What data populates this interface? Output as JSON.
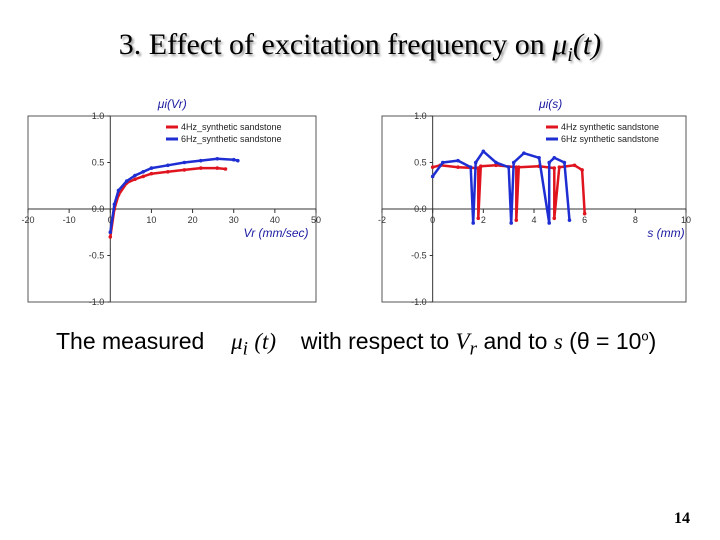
{
  "slide": {
    "title_main": "3. Effect of excitation frequency on ",
    "title_mu": "μ",
    "title_sub": "i",
    "title_tail": "(t)",
    "caption": {
      "part1": "The measured",
      "mu": "μ",
      "sub_i": "i",
      "paren_t": "(t)",
      "part2": "with respect to",
      "Vr": "V",
      "Vr_sub": "r",
      "part3": "and to",
      "s": "s",
      "theta_eq": "(θ = 10",
      "deg": "o",
      "close": ")"
    },
    "page_number": "14"
  },
  "chart_data": [
    {
      "type": "line",
      "title": "μi(Vr)",
      "xlabel": "Vr (mm/sec)",
      "ylabel": "",
      "xlim": [
        -20,
        50
      ],
      "ylim": [
        -1.0,
        1.0
      ],
      "xticks": [
        "-20",
        "-10",
        "0",
        "10",
        "20",
        "30",
        "40",
        "50"
      ],
      "yticks": [
        "1.0",
        "0.5",
        "0.0",
        "-0.5",
        "-1.0"
      ],
      "grid": false,
      "legend_position": "top-right",
      "series": [
        {
          "name": "4Hz_synthetic sandstone",
          "color": "#e0141e",
          "x": [
            0,
            1,
            2,
            4,
            6,
            8,
            10,
            14,
            18,
            22,
            26,
            28
          ],
          "y": [
            -0.3,
            0.0,
            0.15,
            0.28,
            0.32,
            0.35,
            0.38,
            0.4,
            0.42,
            0.44,
            0.44,
            0.43
          ]
        },
        {
          "name": "6Hz_synthetic sandstone",
          "color": "#1e2ed2",
          "x": [
            0,
            1,
            2,
            4,
            6,
            8,
            10,
            14,
            18,
            22,
            26,
            30,
            31
          ],
          "y": [
            -0.25,
            0.05,
            0.2,
            0.3,
            0.36,
            0.4,
            0.44,
            0.47,
            0.5,
            0.52,
            0.54,
            0.53,
            0.52
          ]
        }
      ]
    },
    {
      "type": "line",
      "title": "μi(s)",
      "xlabel": "s (mm)",
      "ylabel": "",
      "xlim": [
        -2,
        10
      ],
      "ylim": [
        -1.0,
        1.0
      ],
      "xticks": [
        "-2",
        "0",
        "2",
        "4",
        "6",
        "8",
        "10"
      ],
      "yticks": [
        "1.0",
        "0.5",
        "0.0",
        "-0.5",
        "-1.0"
      ],
      "grid": false,
      "legend_position": "top-right",
      "series": [
        {
          "name": "4Hz synthetic sandstone",
          "color": "#e0141e",
          "x": [
            0.0,
            0.3,
            1.0,
            1.8,
            1.8,
            1.9,
            2.5,
            3.3,
            3.3,
            3.4,
            4.2,
            4.8,
            4.8,
            5.0,
            5.6,
            5.9,
            6.0
          ],
          "y": [
            0.45,
            0.47,
            0.45,
            0.44,
            -0.1,
            0.46,
            0.47,
            0.45,
            -0.12,
            0.45,
            0.46,
            0.44,
            -0.1,
            0.45,
            0.47,
            0.42,
            -0.05
          ]
        },
        {
          "name": "6Hz synthetic sandstone",
          "color": "#1e2ed2",
          "x": [
            0.0,
            0.4,
            1.0,
            1.5,
            1.6,
            1.7,
            2.0,
            2.5,
            3.0,
            3.1,
            3.2,
            3.6,
            4.2,
            4.6,
            4.6,
            4.8,
            5.2,
            5.4
          ],
          "y": [
            0.35,
            0.5,
            0.52,
            0.45,
            -0.15,
            0.5,
            0.62,
            0.5,
            0.45,
            -0.15,
            0.5,
            0.6,
            0.55,
            -0.15,
            0.5,
            0.55,
            0.5,
            -0.12
          ]
        }
      ]
    }
  ]
}
